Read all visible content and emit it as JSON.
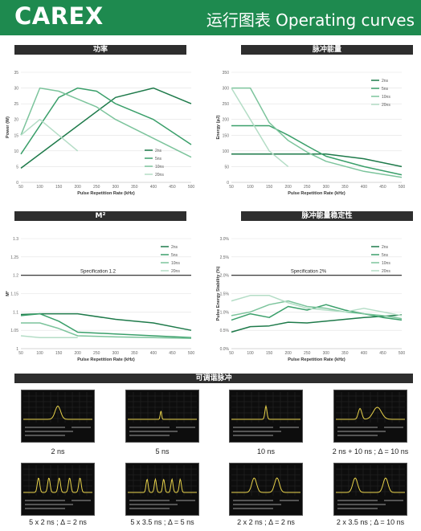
{
  "header": {
    "brand": "CAREX",
    "title": "运行图表 Operating curves"
  },
  "colors": {
    "header_bg": "#1e8a4f",
    "bar_bg": "#2e2e2e",
    "s2": "#1e7a4a",
    "s5": "#3a9f6a",
    "s10": "#7cc49c",
    "s20": "#b4ddc6",
    "spec": "#222222",
    "trace": "#e8d24a"
  },
  "chart_data": [
    {
      "type": "line",
      "title": "功率",
      "xlabel": "Pulse Repetition Rate (kHz)",
      "ylabel": "Power (W)",
      "x_ticks": [
        50,
        100,
        150,
        200,
        250,
        300,
        350,
        400,
        450,
        500
      ],
      "y_ticks": [
        0,
        5,
        10,
        15,
        20,
        25,
        30,
        35
      ],
      "xlim": [
        50,
        500
      ],
      "ylim": [
        0,
        35
      ],
      "legend": "inside-right",
      "series": [
        {
          "name": "2ns",
          "x": [
            50,
            300,
            400,
            500
          ],
          "y": [
            4.5,
            27,
            30,
            25
          ]
        },
        {
          "name": "5ns",
          "x": [
            50,
            150,
            200,
            250,
            300,
            400,
            500
          ],
          "y": [
            9,
            27,
            30,
            29,
            25,
            20,
            12
          ]
        },
        {
          "name": "10ns",
          "x": [
            50,
            100,
            150,
            200,
            250,
            300,
            400,
            500
          ],
          "y": [
            15,
            30,
            29,
            26.5,
            24,
            20,
            14,
            8
          ]
        },
        {
          "name": "20ns",
          "x": [
            50,
            100,
            150,
            200
          ],
          "y": [
            15,
            20,
            15,
            10
          ]
        }
      ]
    },
    {
      "type": "line",
      "title": "脉冲能量",
      "xlabel": "Pulse Repetition Rate (kHz)",
      "ylabel": "Energy (µJ)",
      "x_ticks": [
        50,
        100,
        150,
        200,
        250,
        300,
        350,
        400,
        450,
        500
      ],
      "y_ticks": [
        0,
        50,
        100,
        150,
        200,
        250,
        300,
        350
      ],
      "xlim": [
        50,
        500
      ],
      "ylim": [
        0,
        350
      ],
      "legend": "top-right",
      "series": [
        {
          "name": "2ns",
          "x": [
            50,
            300,
            400,
            500
          ],
          "y": [
            90,
            90,
            75,
            50
          ]
        },
        {
          "name": "5ns",
          "x": [
            50,
            150,
            200,
            250,
            300,
            400,
            500
          ],
          "y": [
            180,
            180,
            150,
            116,
            83,
            50,
            24
          ]
        },
        {
          "name": "10ns",
          "x": [
            50,
            100,
            150,
            200,
            250,
            300,
            400,
            500
          ],
          "y": [
            300,
            300,
            190,
            133,
            96,
            67,
            35,
            16
          ]
        },
        {
          "name": "20ns",
          "x": [
            50,
            100,
            150,
            200
          ],
          "y": [
            300,
            200,
            100,
            50
          ]
        }
      ]
    },
    {
      "type": "line",
      "title": "M²",
      "xlabel": "Pulse Repetition Rate (kHz)",
      "ylabel": "M²",
      "x_ticks": [
        50,
        100,
        150,
        200,
        250,
        300,
        350,
        400,
        450,
        500
      ],
      "y_ticks": [
        "1",
        "1.05",
        "1.1",
        "1.15",
        "1.2",
        "1.25",
        "1.3"
      ],
      "y_tick_values": [
        1,
        1.05,
        1.1,
        1.15,
        1.2,
        1.25,
        1.3
      ],
      "xlim": [
        50,
        500
      ],
      "ylim": [
        1,
        1.3
      ],
      "legend": "top-right",
      "annotation": "Specification 1.2",
      "reference_line": 1.2,
      "series": [
        {
          "name": "2ns",
          "x": [
            50,
            100,
            200,
            300,
            400,
            500
          ],
          "y": [
            1.093,
            1.095,
            1.095,
            1.08,
            1.07,
            1.05
          ]
        },
        {
          "name": "5ns",
          "x": [
            50,
            100,
            150,
            200,
            300,
            400,
            500
          ],
          "y": [
            1.09,
            1.095,
            1.075,
            1.045,
            1.04,
            1.035,
            1.03
          ]
        },
        {
          "name": "10ns",
          "x": [
            50,
            100,
            150,
            200,
            300,
            400,
            500
          ],
          "y": [
            1.07,
            1.07,
            1.055,
            1.035,
            1.032,
            1.03,
            1.028
          ]
        },
        {
          "name": "20ns",
          "x": [
            50,
            100,
            150,
            200
          ],
          "y": [
            1.035,
            1.03,
            1.03,
            1.03
          ]
        }
      ]
    },
    {
      "type": "line",
      "title": "脉冲能量稳定性",
      "xlabel": "Pulse Repetition Rate (kHz)",
      "ylabel": "Pulse Energy Stability (%)",
      "x_ticks": [
        50,
        100,
        150,
        200,
        250,
        300,
        350,
        400,
        450,
        500
      ],
      "y_ticks": [
        "0.0%",
        "0.5%",
        "1.0%",
        "1.5%",
        "2.0%",
        "2.5%",
        "3.0%"
      ],
      "y_tick_values": [
        0,
        0.5,
        1,
        1.5,
        2,
        2.5,
        3
      ],
      "xlim": [
        50,
        500
      ],
      "ylim": [
        0,
        3
      ],
      "legend": "top-right",
      "annotation": "Specification 2%",
      "reference_line": 2,
      "series": [
        {
          "name": "2ns",
          "x": [
            50,
            100,
            150,
            200,
            250,
            300,
            350,
            400,
            450,
            500
          ],
          "y": [
            0.45,
            0.6,
            0.62,
            0.72,
            0.7,
            0.75,
            0.8,
            0.85,
            0.88,
            0.92
          ]
        },
        {
          "name": "5ns",
          "x": [
            50,
            100,
            150,
            200,
            250,
            300,
            350,
            400,
            450,
            500
          ],
          "y": [
            0.78,
            0.95,
            0.85,
            1.15,
            1.05,
            1.2,
            1.05,
            0.95,
            0.85,
            0.78
          ]
        },
        {
          "name": "10ns",
          "x": [
            50,
            100,
            150,
            200,
            250,
            300,
            350,
            400,
            450,
            500
          ],
          "y": [
            0.9,
            1.0,
            1.2,
            1.3,
            1.15,
            1.1,
            1.0,
            0.95,
            0.9,
            0.82
          ]
        },
        {
          "name": "20ns",
          "x": [
            50,
            100,
            150,
            200,
            250,
            300,
            350,
            400,
            450,
            500
          ],
          "y": [
            1.3,
            1.45,
            1.45,
            1.25,
            1.1,
            1.05,
            1.0,
            1.1,
            1.0,
            0.9
          ]
        }
      ]
    }
  ],
  "tunable": {
    "title": "可调谐脉冲",
    "captions": [
      "2 ns",
      "5 ns",
      "10 ns",
      "2 ns + 10 ns ; Δ = 10 ns",
      "5 x 2 ns ; Δ = 2 ns",
      "5 x 3.5 ns ; Δ = 5 ns",
      "2 x 2 ns ; Δ = 2 ns",
      "2 x 3.5 ns ; Δ = 10 ns"
    ],
    "shapes": [
      {
        "pulses": [
          [
            0.5,
            0.08,
            0.55
          ]
        ]
      },
      {
        "pulses": [
          [
            0.48,
            0.02,
            0.35
          ]
        ]
      },
      {
        "pulses": [
          [
            0.5,
            0.03,
            0.55
          ]
        ]
      },
      {
        "pulses": [
          [
            0.35,
            0.05,
            0.45
          ],
          [
            0.6,
            0.12,
            0.5
          ]
        ]
      },
      {
        "pulses": [
          [
            0.22,
            0.035,
            0.6
          ],
          [
            0.37,
            0.035,
            0.6
          ],
          [
            0.52,
            0.035,
            0.6
          ],
          [
            0.67,
            0.035,
            0.6
          ],
          [
            0.82,
            0.035,
            0.6
          ]
        ]
      },
      {
        "pulses": [
          [
            0.28,
            0.03,
            0.55
          ],
          [
            0.4,
            0.03,
            0.55
          ],
          [
            0.52,
            0.03,
            0.55
          ],
          [
            0.64,
            0.03,
            0.55
          ],
          [
            0.76,
            0.03,
            0.55
          ]
        ]
      },
      {
        "pulses": [
          [
            0.33,
            0.07,
            0.6
          ],
          [
            0.66,
            0.07,
            0.6
          ]
        ]
      },
      {
        "pulses": [
          [
            0.28,
            0.07,
            0.6
          ],
          [
            0.72,
            0.07,
            0.6
          ]
        ]
      }
    ]
  }
}
